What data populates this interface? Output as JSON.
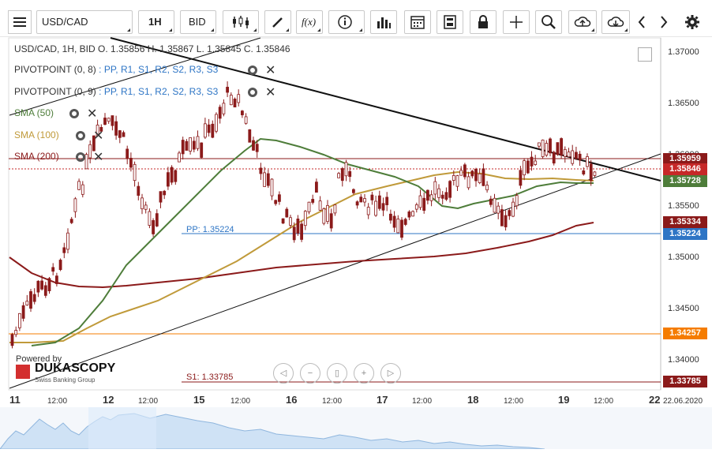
{
  "toolbar": {
    "menu_icon": "hamburger-menu-icon",
    "symbol": "USD/CAD",
    "timeframe": "1H",
    "price_type": "BID",
    "fx_label": "f(x)",
    "icons": [
      "chart-type-icon",
      "pencil-icon",
      "fx-icon",
      "info-icon",
      "bar-chart-icon",
      "calendar-icon",
      "calculator-icon",
      "lock-icon",
      "crosshair-icon",
      "zoom-icon",
      "upload-icon",
      "download-icon",
      "chevron-left-icon",
      "chevron-right-icon",
      "gear-icon"
    ]
  },
  "legend": {
    "ohlc": "USD/CAD, 1H, BID    O. 1.35856 H. 1.35867 L. 1.35845 C. 1.35846",
    "pivot1": {
      "name": "PIVOTPOINT (0, 8)",
      "levels": ": PP, R1, S1, R2, S2, R3, S3"
    },
    "pivot2": {
      "name": "PIVOTPOINT (0, 9)",
      "levels": ": PP, R1, S1, R2, S2, R3, S3"
    },
    "sma50": "SMA (50)",
    "sma100": "SMA (100)",
    "sma200": "SMA (200)"
  },
  "colors": {
    "pp": "#2e75c5",
    "r1": "#2e7d32",
    "s1": "#c62828",
    "r2": "#d81b60",
    "s2": "#6a1b9a",
    "r3": "#f9a825",
    "s3": "#f9a825",
    "sma50": "#4e7d3a",
    "sma100": "#c09a3a",
    "sma200": "#8b1a1a",
    "candle_up": "#ffffff",
    "candle_down": "#8b1a1a",
    "candle_outline": "#8b1a1a"
  },
  "y_axis": {
    "ticks": [
      "1.37000",
      "1.36500",
      "1.36000",
      "1.35500",
      "1.35000",
      "1.34500",
      "1.34000"
    ]
  },
  "x_axis": {
    "labels": [
      "11",
      "12:00",
      "12",
      "12:00",
      "15",
      "12:00",
      "16",
      "12:00",
      "17",
      "12:00",
      "18",
      "12:00",
      "19",
      "12:00",
      "22",
      "22.06.2020"
    ]
  },
  "price_tags": [
    {
      "value": "1.35959",
      "color": "#8b1a1a"
    },
    {
      "value": "1.35846",
      "color": "#c62828"
    },
    {
      "value": "1.35728",
      "color": "#4e7d3a"
    },
    {
      "value": "1.35334",
      "color": "#8b1a1a"
    },
    {
      "value": "1.35224",
      "color": "#2e75c5"
    },
    {
      "value": "1.34257",
      "color": "#f57c00"
    },
    {
      "value": "1.33785",
      "color": "#8b1a1a"
    }
  ],
  "level_labels": {
    "pp": "PP: 1.35224",
    "s1": "S1: 1.33785"
  },
  "branding": {
    "powered_by": "Powered by",
    "name": "DUKASCOPY",
    "tagline": "Swiss Banking Group"
  },
  "nav_icons": [
    "scroll-left-icon",
    "zoom-out-icon",
    "zoom-reset-icon",
    "zoom-in-icon",
    "scroll-right-icon"
  ]
}
